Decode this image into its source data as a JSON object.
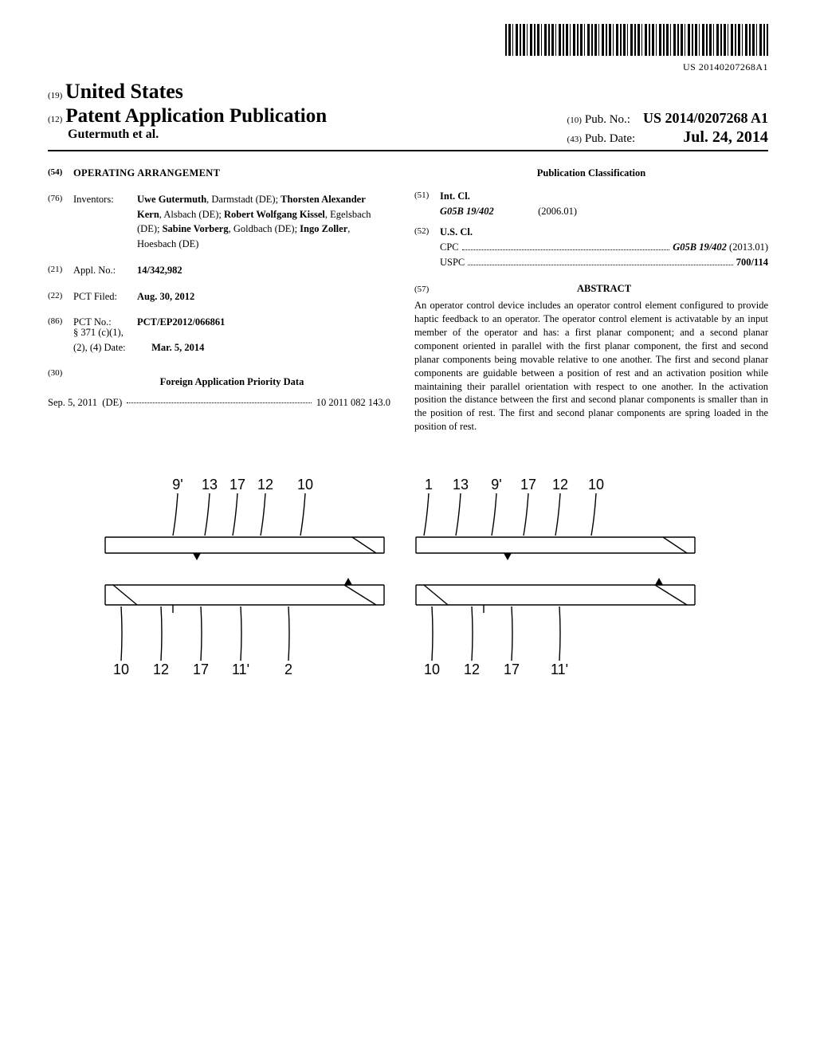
{
  "barcode_text": "US 20140207268A1",
  "header": {
    "country_prefix": "(19)",
    "country": "United States",
    "doc_type_prefix": "(12)",
    "doc_type": "Patent Application Publication",
    "authors": "Gutermuth et al.",
    "pub_no_prefix": "(10)",
    "pub_no_label": "Pub. No.:",
    "pub_no": "US 2014/0207268 A1",
    "pub_date_prefix": "(43)",
    "pub_date_label": "Pub. Date:",
    "pub_date": "Jul. 24, 2014"
  },
  "title": {
    "code": "(54)",
    "value": "OPERATING ARRANGEMENT"
  },
  "inventors": {
    "code": "(76)",
    "label": "Inventors:",
    "list": [
      {
        "name": "Uwe Gutermuth",
        "loc": ", Darmstadt (DE); "
      },
      {
        "name": "Thorsten Alexander Kern",
        "loc": ", Alsbach (DE); "
      },
      {
        "name": "Robert Wolfgang Kissel",
        "loc": ", Egelsbach (DE); "
      },
      {
        "name": "Sabine Vorberg",
        "loc": ", Goldbach (DE); "
      },
      {
        "name": "Ingo Zoller",
        "loc": ", Hoesbach (DE)"
      }
    ]
  },
  "appl_no": {
    "code": "(21)",
    "label": "Appl. No.:",
    "value": "14/342,982"
  },
  "pct_filed": {
    "code": "(22)",
    "label": "PCT Filed:",
    "value": "Aug. 30, 2012"
  },
  "pct_no": {
    "code": "(86)",
    "label": "PCT No.:",
    "value": "PCT/EP2012/066861"
  },
  "pct_371": {
    "label": "§ 371 (c)(1),",
    "label2": "(2), (4) Date:",
    "value": "Mar. 5, 2014"
  },
  "foreign_priority": {
    "code": "(30)",
    "heading": "Foreign Application Priority Data",
    "date": "Sep. 5, 2011",
    "country": "(DE)",
    "number": "10 2011 082 143.0"
  },
  "classification": {
    "heading": "Publication Classification",
    "int_cl": {
      "code": "(51)",
      "label": "Int. Cl.",
      "main": "G05B 19/402",
      "year": "(2006.01)"
    },
    "us_cl": {
      "code": "(52)",
      "label": "U.S. Cl.",
      "cpc_label": "CPC",
      "cpc": "G05B 19/402",
      "cpc_year": "(2013.01)",
      "uspc_label": "USPC",
      "uspc": "700/114"
    }
  },
  "abstract": {
    "code": "(57)",
    "heading": "ABSTRACT",
    "text": "An operator control device includes an operator control element configured to provide haptic feedback to an operator. The operator control element is activatable by an input member of the operator and has: a first planar component; and a second planar component oriented in parallel with the first planar component, the first and second planar components being movable relative to one another. The first and second planar components are guidable between a position of rest and an activation position while maintaining their parallel orientation with respect to one another. In the activation position the distance between the first and second planar components is smaller than in the position of rest. The first and second planar components are spring loaded in the position of rest."
  },
  "figure": {
    "labels_top": [
      "9'",
      "13",
      "17",
      "12",
      "10",
      "1",
      "13",
      "9'",
      "17",
      "12",
      "10"
    ],
    "labels_bottom": [
      "10",
      "12",
      "17",
      "11'",
      "2",
      "10",
      "12",
      "17",
      "11'"
    ],
    "line_color": "#000000",
    "line_width": 1.4,
    "font_size": 18
  }
}
